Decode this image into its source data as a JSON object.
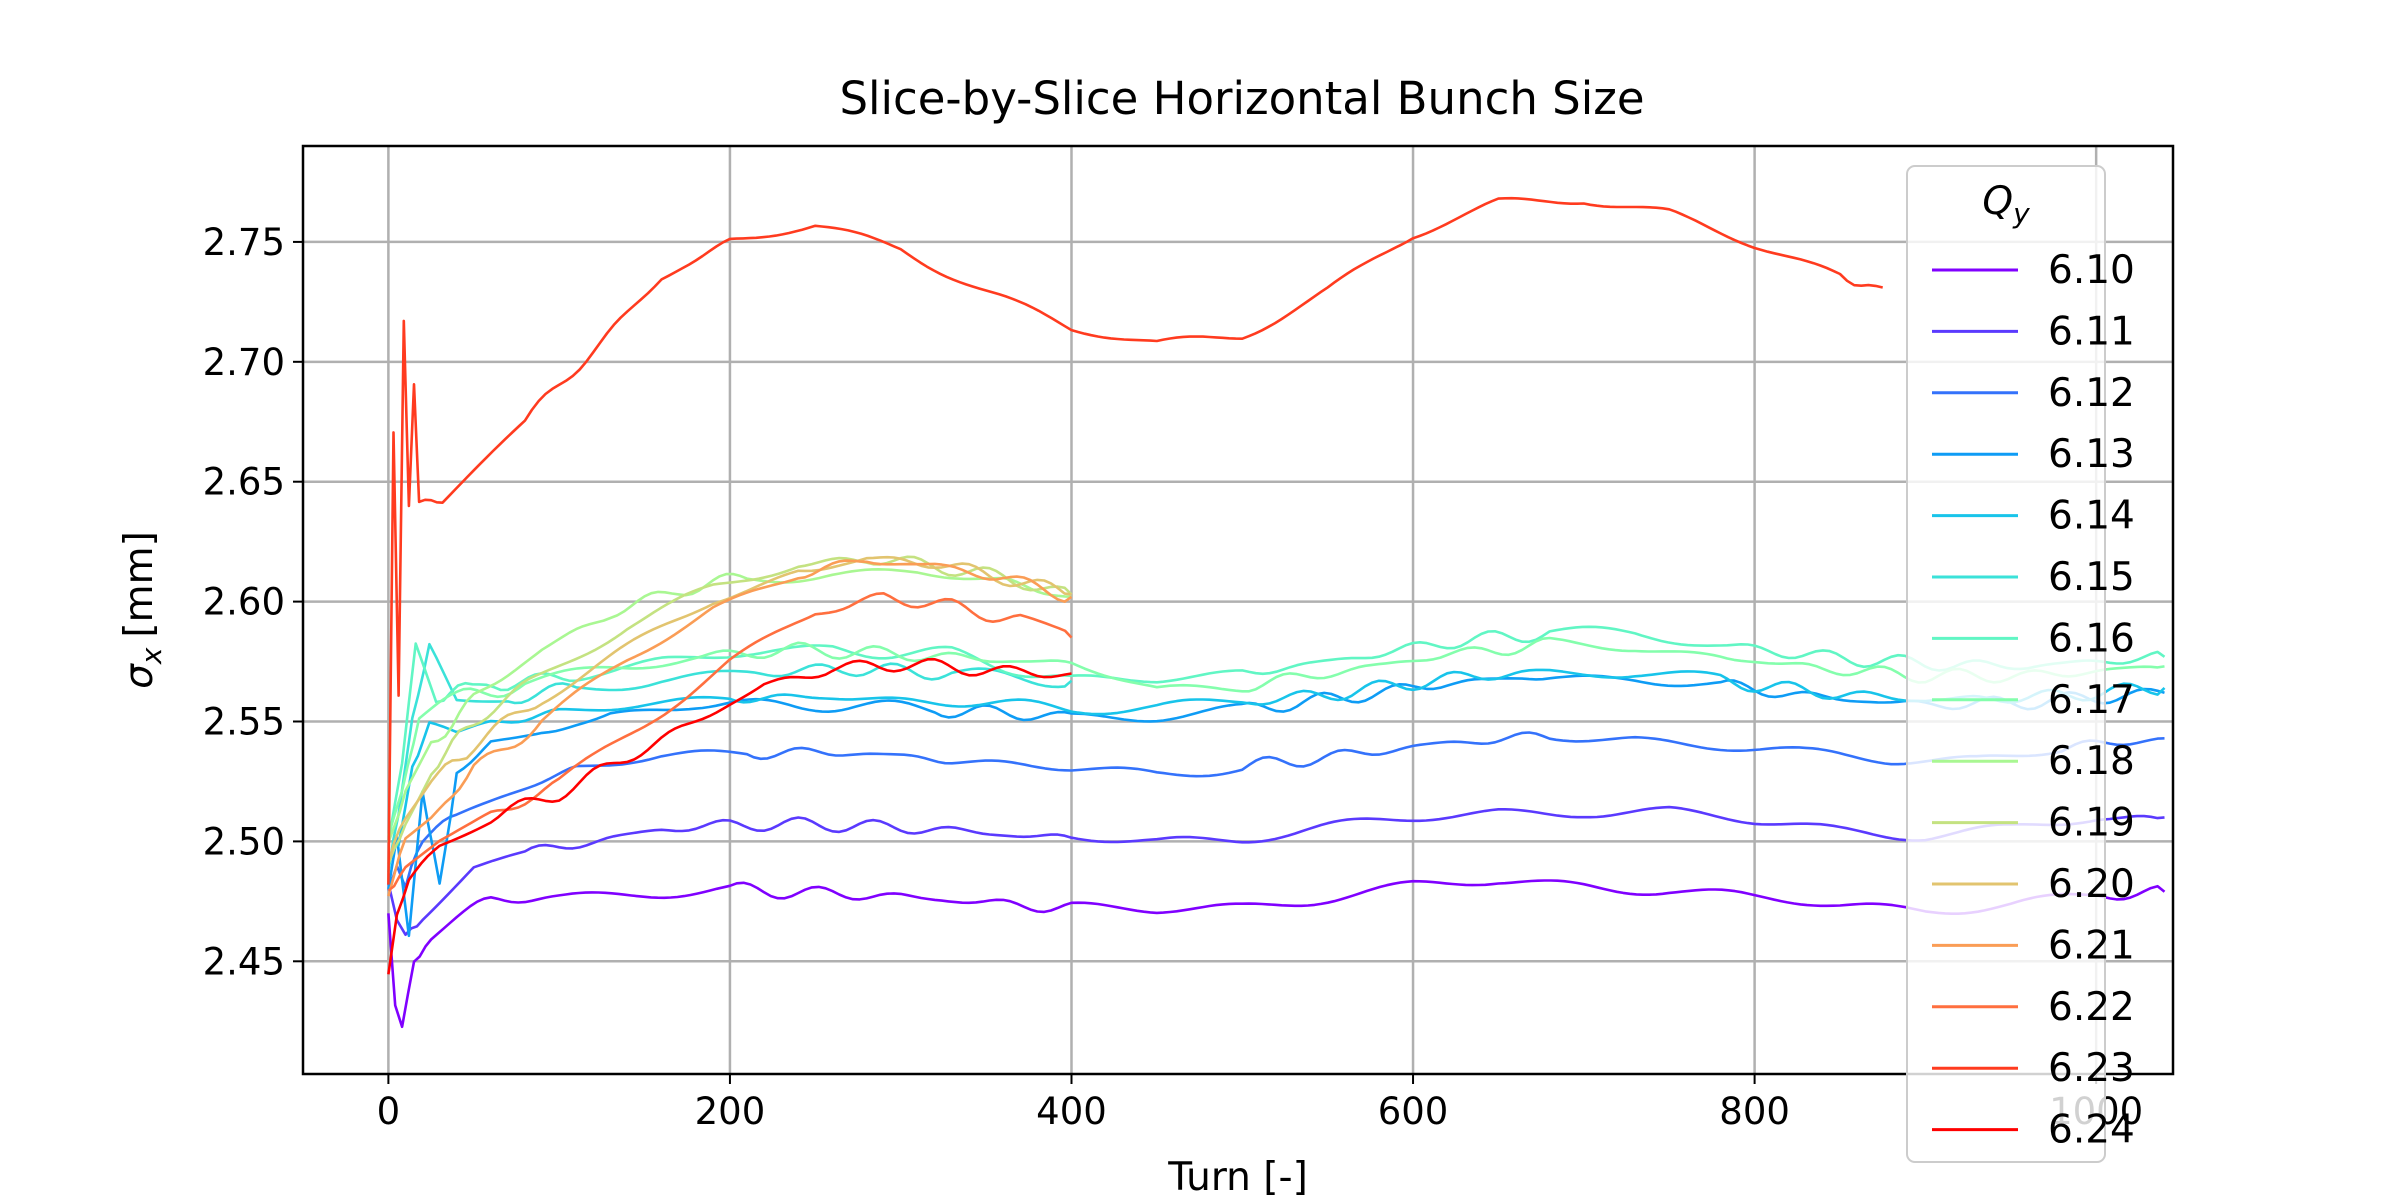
{
  "chart_data": {
    "type": "line",
    "title": "Slice-by-Slice Horizontal Bunch Size",
    "xlabel": "Turn [-]",
    "ylabel_symbol": "σ",
    "ylabel_subscript": "x",
    "ylabel_unit": "[mm]",
    "xlim": [
      -50,
      1045
    ],
    "ylim": [
      2.403,
      2.79
    ],
    "xticks": [
      0,
      200,
      400,
      600,
      800,
      1000
    ],
    "xtick_labels": [
      "0",
      "200",
      "400",
      "600",
      "800",
      "1000"
    ],
    "yticks": [
      2.45,
      2.5,
      2.55,
      2.6,
      2.65,
      2.7,
      2.75
    ],
    "ytick_labels": [
      "2.45",
      "2.50",
      "2.55",
      "2.60",
      "2.65",
      "2.70",
      "2.75"
    ],
    "grid": true,
    "legend": {
      "title_symbol": "Q",
      "title_subscript": "y",
      "placement": "right"
    },
    "series": [
      {
        "name": "6.10",
        "color": "#8000ff",
        "points": [
          [
            0,
            2.47
          ],
          [
            4,
            2.43
          ],
          [
            8,
            2.42
          ],
          [
            15,
            2.45
          ],
          [
            25,
            2.46
          ],
          [
            40,
            2.47
          ],
          [
            60,
            2.475
          ],
          [
            100,
            2.477
          ],
          [
            150,
            2.479
          ],
          [
            200,
            2.48
          ],
          [
            300,
            2.477
          ],
          [
            400,
            2.472
          ],
          [
            450,
            2.471
          ],
          [
            500,
            2.473
          ],
          [
            550,
            2.477
          ],
          [
            600,
            2.481
          ],
          [
            650,
            2.483
          ],
          [
            700,
            2.482
          ],
          [
            750,
            2.48
          ],
          [
            800,
            2.476
          ],
          [
            850,
            2.473
          ],
          [
            900,
            2.472
          ],
          [
            950,
            2.474
          ],
          [
            1000,
            2.477
          ],
          [
            1040,
            2.479
          ]
        ]
      },
      {
        "name": "6.11",
        "color": "#5a3afe",
        "points": [
          [
            0,
            2.48
          ],
          [
            5,
            2.47
          ],
          [
            10,
            2.46
          ],
          [
            20,
            2.47
          ],
          [
            35,
            2.48
          ],
          [
            50,
            2.49
          ],
          [
            80,
            2.495
          ],
          [
            120,
            2.5
          ],
          [
            160,
            2.505
          ],
          [
            200,
            2.507
          ],
          [
            260,
            2.507
          ],
          [
            320,
            2.505
          ],
          [
            400,
            2.501
          ],
          [
            450,
            2.5
          ],
          [
            500,
            2.502
          ],
          [
            550,
            2.506
          ],
          [
            600,
            2.509
          ],
          [
            650,
            2.512
          ],
          [
            700,
            2.513
          ],
          [
            750,
            2.512
          ],
          [
            800,
            2.508
          ],
          [
            850,
            2.505
          ],
          [
            900,
            2.503
          ],
          [
            950,
            2.505
          ],
          [
            1000,
            2.509
          ],
          [
            1040,
            2.51
          ]
        ]
      },
      {
        "name": "6.12",
        "color": "#3472fb",
        "points": [
          [
            0,
            2.48
          ],
          [
            5,
            2.49
          ],
          [
            10,
            2.48
          ],
          [
            20,
            2.5
          ],
          [
            40,
            2.51
          ],
          [
            70,
            2.52
          ],
          [
            110,
            2.53
          ],
          [
            160,
            2.535
          ],
          [
            210,
            2.537
          ],
          [
            270,
            2.537
          ],
          [
            330,
            2.534
          ],
          [
            400,
            2.53
          ],
          [
            450,
            2.529
          ],
          [
            500,
            2.531
          ],
          [
            560,
            2.536
          ],
          [
            620,
            2.541
          ],
          [
            680,
            2.544
          ],
          [
            730,
            2.543
          ],
          [
            780,
            2.54
          ],
          [
            830,
            2.536
          ],
          [
            880,
            2.534
          ],
          [
            930,
            2.535
          ],
          [
            980,
            2.539
          ],
          [
            1040,
            2.543
          ]
        ]
      },
      {
        "name": "6.13",
        "color": "#0e9cf5",
        "points": [
          [
            0,
            2.48
          ],
          [
            5,
            2.5
          ],
          [
            12,
            2.46
          ],
          [
            20,
            2.52
          ],
          [
            30,
            2.48
          ],
          [
            40,
            2.53
          ],
          [
            60,
            2.54
          ],
          [
            90,
            2.545
          ],
          [
            130,
            2.553
          ],
          [
            180,
            2.557
          ],
          [
            250,
            2.557
          ],
          [
            320,
            2.555
          ],
          [
            400,
            2.552
          ],
          [
            450,
            2.553
          ],
          [
            500,
            2.555
          ],
          [
            560,
            2.56
          ],
          [
            620,
            2.566
          ],
          [
            680,
            2.569
          ],
          [
            730,
            2.568
          ],
          [
            780,
            2.565
          ],
          [
            840,
            2.56
          ],
          [
            900,
            2.557
          ],
          [
            960,
            2.558
          ],
          [
            1040,
            2.562
          ]
        ]
      },
      {
        "name": "6.14",
        "color": "#18c4ea",
        "points": [
          [
            0,
            2.49
          ],
          [
            6,
            2.5
          ],
          [
            14,
            2.53
          ],
          [
            24,
            2.55
          ],
          [
            40,
            2.545
          ],
          [
            60,
            2.55
          ],
          [
            100,
            2.553
          ],
          [
            150,
            2.557
          ],
          [
            200,
            2.56
          ],
          [
            260,
            2.56
          ],
          [
            330,
            2.558
          ],
          [
            400,
            2.556
          ],
          [
            450,
            2.556
          ],
          [
            500,
            2.558
          ],
          [
            560,
            2.562
          ],
          [
            620,
            2.568
          ],
          [
            680,
            2.571
          ],
          [
            730,
            2.57
          ],
          [
            780,
            2.567
          ],
          [
            840,
            2.562
          ],
          [
            900,
            2.559
          ],
          [
            960,
            2.56
          ],
          [
            1040,
            2.564
          ]
        ]
      },
      {
        "name": "6.15",
        "color": "#3be2d9",
        "points": [
          [
            0,
            2.49
          ],
          [
            6,
            2.51
          ],
          [
            14,
            2.55
          ],
          [
            24,
            2.58
          ],
          [
            40,
            2.56
          ],
          [
            70,
            2.56
          ],
          [
            110,
            2.564
          ],
          [
            160,
            2.568
          ],
          [
            210,
            2.57
          ],
          [
            270,
            2.572
          ],
          [
            330,
            2.57
          ],
          [
            400,
            2.567
          ]
        ]
      },
      {
        "name": "6.16",
        "color": "#61f6c4",
        "points": [
          [
            0,
            2.5
          ],
          [
            8,
            2.53
          ],
          [
            16,
            2.58
          ],
          [
            28,
            2.56
          ],
          [
            45,
            2.565
          ],
          [
            70,
            2.565
          ],
          [
            110,
            2.57
          ],
          [
            160,
            2.575
          ],
          [
            210,
            2.578
          ],
          [
            260,
            2.58
          ],
          [
            330,
            2.578
          ],
          [
            400,
            2.567
          ],
          [
            450,
            2.567
          ],
          [
            500,
            2.57
          ],
          [
            560,
            2.576
          ],
          [
            620,
            2.583
          ],
          [
            680,
            2.587
          ],
          [
            730,
            2.586
          ],
          [
            780,
            2.582
          ],
          [
            840,
            2.577
          ],
          [
            900,
            2.574
          ],
          [
            960,
            2.573
          ],
          [
            1040,
            2.577
          ]
        ]
      },
      {
        "name": "6.17",
        "color": "#84feac",
        "points": [
          [
            0,
            2.5
          ],
          [
            8,
            2.52
          ],
          [
            18,
            2.55
          ],
          [
            40,
            2.56
          ],
          [
            80,
            2.565
          ],
          [
            130,
            2.572
          ],
          [
            180,
            2.577
          ],
          [
            240,
            2.58
          ],
          [
            300,
            2.578
          ],
          [
            400,
            2.574
          ],
          [
            450,
            2.563
          ],
          [
            500,
            2.565
          ],
          [
            560,
            2.571
          ],
          [
            620,
            2.578
          ],
          [
            680,
            2.582
          ],
          [
            730,
            2.581
          ],
          [
            780,
            2.577
          ],
          [
            840,
            2.572
          ],
          [
            900,
            2.569
          ],
          [
            960,
            2.569
          ],
          [
            1040,
            2.573
          ]
        ]
      },
      {
        "name": "6.18",
        "color": "#a9f792",
        "points": [
          [
            0,
            2.5
          ],
          [
            10,
            2.52
          ],
          [
            25,
            2.54
          ],
          [
            50,
            2.56
          ],
          [
            90,
            2.58
          ],
          [
            130,
            2.595
          ],
          [
            170,
            2.605
          ],
          [
            210,
            2.61
          ],
          [
            260,
            2.612
          ],
          [
            310,
            2.612
          ],
          [
            360,
            2.608
          ],
          [
            400,
            2.602
          ]
        ]
      },
      {
        "name": "6.19",
        "color": "#c4e281",
        "points": [
          [
            0,
            2.49
          ],
          [
            10,
            2.51
          ],
          [
            25,
            2.53
          ],
          [
            50,
            2.55
          ],
          [
            90,
            2.57
          ],
          [
            140,
            2.59
          ],
          [
            190,
            2.605
          ],
          [
            240,
            2.615
          ],
          [
            280,
            2.618
          ],
          [
            320,
            2.615
          ],
          [
            360,
            2.61
          ],
          [
            400,
            2.603
          ]
        ]
      },
      {
        "name": "6.20",
        "color": "#e2c46f",
        "points": [
          [
            0,
            2.49
          ],
          [
            10,
            2.51
          ],
          [
            25,
            2.525
          ],
          [
            50,
            2.54
          ],
          [
            90,
            2.56
          ],
          [
            140,
            2.58
          ],
          [
            190,
            2.6
          ],
          [
            240,
            2.612
          ],
          [
            280,
            2.618
          ],
          [
            320,
            2.616
          ],
          [
            360,
            2.61
          ],
          [
            400,
            2.603
          ]
        ]
      },
      {
        "name": "6.21",
        "color": "#fa9d56",
        "points": [
          [
            0,
            2.48
          ],
          [
            10,
            2.5
          ],
          [
            25,
            2.51
          ],
          [
            50,
            2.53
          ],
          [
            90,
            2.55
          ],
          [
            140,
            2.575
          ],
          [
            190,
            2.597
          ],
          [
            240,
            2.612
          ],
          [
            280,
            2.617
          ],
          [
            320,
            2.615
          ],
          [
            360,
            2.61
          ],
          [
            400,
            2.602
          ]
        ]
      },
      {
        "name": "6.22",
        "color": "#ff6f3f",
        "points": [
          [
            0,
            2.48
          ],
          [
            10,
            2.49
          ],
          [
            30,
            2.5
          ],
          [
            60,
            2.51
          ],
          [
            100,
            2.525
          ],
          [
            150,
            2.55
          ],
          [
            200,
            2.575
          ],
          [
            250,
            2.595
          ],
          [
            290,
            2.602
          ],
          [
            330,
            2.598
          ],
          [
            370,
            2.592
          ],
          [
            400,
            2.585
          ]
        ]
      },
      {
        "name": "6.23",
        "color": "#ff3b1f",
        "points": [
          [
            0,
            2.48
          ],
          [
            3,
            2.67
          ],
          [
            6,
            2.56
          ],
          [
            9,
            2.72
          ],
          [
            12,
            2.64
          ],
          [
            15,
            2.69
          ],
          [
            18,
            2.64
          ],
          [
            25,
            2.64
          ],
          [
            35,
            2.645
          ],
          [
            50,
            2.655
          ],
          [
            80,
            2.675
          ],
          [
            120,
            2.705
          ],
          [
            160,
            2.735
          ],
          [
            200,
            2.75
          ],
          [
            250,
            2.756
          ],
          [
            300,
            2.748
          ],
          [
            350,
            2.73
          ],
          [
            400,
            2.713
          ],
          [
            450,
            2.707
          ],
          [
            500,
            2.712
          ],
          [
            550,
            2.73
          ],
          [
            600,
            2.752
          ],
          [
            650,
            2.766
          ],
          [
            700,
            2.769
          ],
          [
            750,
            2.762
          ],
          [
            800,
            2.748
          ],
          [
            850,
            2.735
          ],
          [
            875,
            2.731
          ]
        ]
      },
      {
        "name": "6.24",
        "color": "#ff0000",
        "points": [
          [
            0,
            2.445
          ],
          [
            5,
            2.47
          ],
          [
            12,
            2.485
          ],
          [
            30,
            2.5
          ],
          [
            60,
            2.51
          ],
          [
            100,
            2.52
          ],
          [
            140,
            2.535
          ],
          [
            180,
            2.55
          ],
          [
            220,
            2.565
          ],
          [
            260,
            2.572
          ],
          [
            300,
            2.574
          ],
          [
            340,
            2.572
          ],
          [
            380,
            2.57
          ],
          [
            400,
            2.57
          ]
        ]
      }
    ]
  }
}
